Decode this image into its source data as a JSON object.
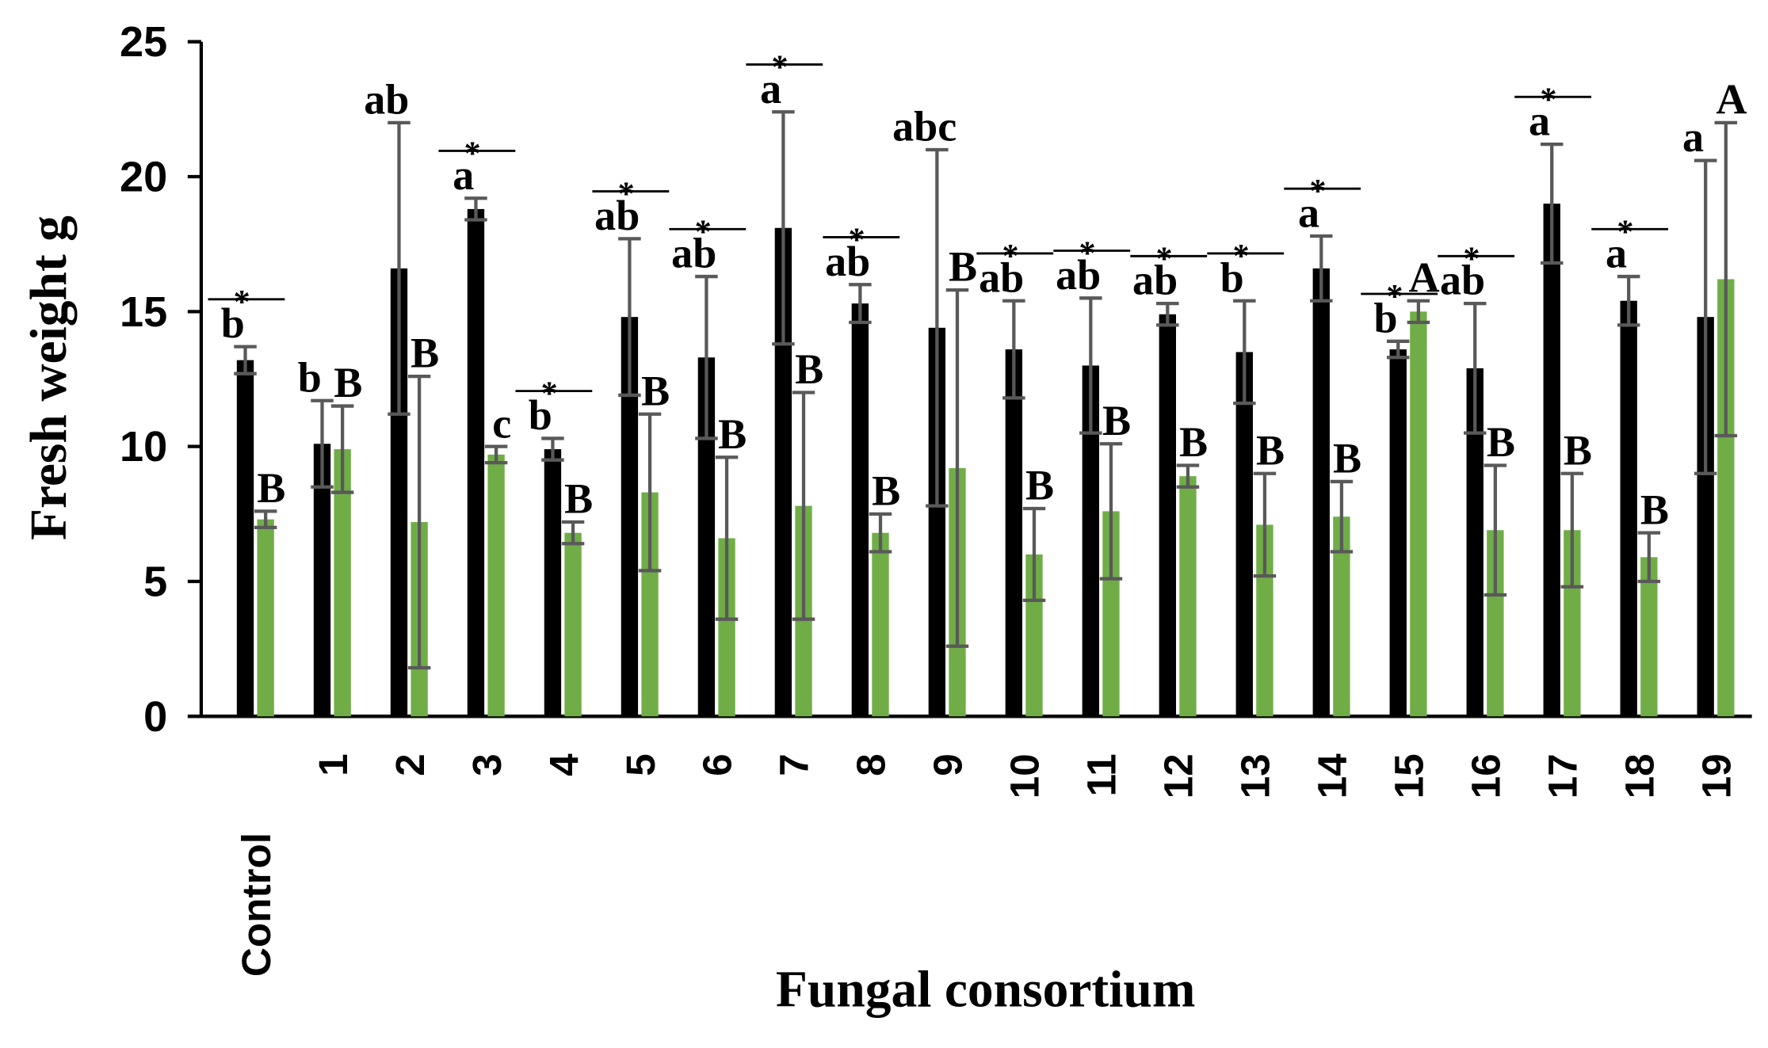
{
  "chart_data": {
    "type": "bar",
    "y_label": "Fresh weight g",
    "x_label": "Fungal consortium",
    "categories": [
      "Control",
      "1",
      "2",
      "3",
      "4",
      "5",
      "6",
      "7",
      "8",
      "9",
      "10",
      "11",
      "12",
      "13",
      "14",
      "15",
      "16",
      "17",
      "18",
      "19"
    ],
    "series": [
      {
        "color": "#000000",
        "error_color": "#595959",
        "values": [
          13.2,
          10.1,
          16.6,
          18.8,
          9.9,
          14.8,
          13.3,
          18.1,
          15.3,
          14.4,
          13.6,
          13.0,
          14.9,
          13.5,
          16.6,
          13.6,
          12.9,
          19.0,
          15.4,
          14.8
        ],
        "errors": [
          0.5,
          1.6,
          5.4,
          0.4,
          0.4,
          2.9,
          3.0,
          4.3,
          0.7,
          6.6,
          1.8,
          2.5,
          0.4,
          1.9,
          1.2,
          0.3,
          2.4,
          2.2,
          0.9,
          5.8
        ],
        "letters": [
          "b",
          "b",
          "ab",
          "a",
          "b",
          "ab",
          "ab",
          "a",
          "ab",
          "abc",
          "ab",
          "ab",
          "ab",
          "b",
          "a",
          "b",
          "ab",
          "a",
          "a",
          "a"
        ]
      },
      {
        "color": "#70ad47",
        "error_color": "#595959",
        "values": [
          7.3,
          9.9,
          7.2,
          9.7,
          6.8,
          8.3,
          6.6,
          7.8,
          6.8,
          9.2,
          6.0,
          7.6,
          8.9,
          7.1,
          7.4,
          15.0,
          6.9,
          6.9,
          5.9,
          16.2
        ],
        "errors": [
          0.3,
          1.6,
          5.4,
          0.3,
          0.4,
          2.9,
          3.0,
          4.2,
          0.7,
          6.6,
          1.7,
          2.5,
          0.4,
          1.9,
          1.3,
          0.4,
          2.4,
          2.1,
          0.9,
          5.8
        ],
        "letters": [
          "B",
          "B",
          "B",
          "c",
          "B",
          "B",
          "B",
          "B",
          "B",
          "B",
          "B",
          "B",
          "B",
          "B",
          "B",
          "A",
          "B",
          "B",
          "B",
          "A"
        ]
      }
    ],
    "significance": [
      "*",
      null,
      null,
      "*",
      "*",
      "*",
      "*",
      "*",
      "*",
      null,
      "*",
      "*",
      "*",
      "*",
      "*",
      "*",
      "*",
      "*",
      "*",
      null
    ],
    "ylim": [
      0,
      25
    ],
    "yticks": [
      0,
      5,
      10,
      15,
      20,
      25
    ],
    "grid": false
  }
}
